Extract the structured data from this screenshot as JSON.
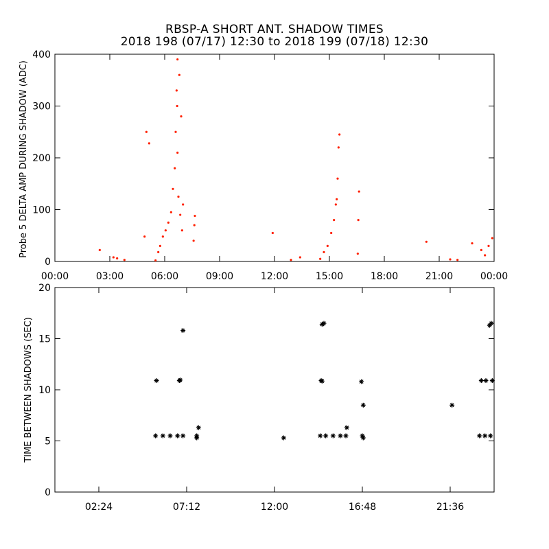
{
  "header": {
    "title": "RBSP-A SHORT ANT. SHADOW TIMES",
    "subtitle": "2018 198 (07/17) 12:30 to 2018 199 (07/18) 12:30"
  },
  "chart_data": [
    {
      "type": "scatter",
      "ylabel": "Probe 5 DELTA AMP DURING SHADOW (ADC)",
      "xlim": [
        0,
        24
      ],
      "ylim": [
        0,
        400
      ],
      "x_ticks": [
        0,
        3,
        6,
        9,
        12,
        15,
        18,
        21,
        24
      ],
      "x_tick_labels": [
        "00:00",
        "03:00",
        "06:00",
        "09:00",
        "12:00",
        "15:00",
        "18:00",
        "21:00",
        "00:00"
      ],
      "y_ticks": [
        0,
        100,
        200,
        300,
        400
      ],
      "y_tick_labels": [
        "0",
        "100",
        "200",
        "300",
        "400"
      ],
      "marker_color": "#ff2000",
      "series": [
        {
          "x": [
            2.45,
            3.2,
            3.4,
            3.8,
            4.9,
            5.0,
            5.15,
            5.5,
            5.65,
            5.75,
            5.9,
            6.05,
            6.2,
            6.35,
            6.45,
            6.55,
            6.6,
            6.65,
            6.7,
            6.8,
            6.9,
            7.0,
            6.68,
            6.7,
            6.75,
            6.85,
            6.95,
            7.58,
            7.62,
            7.65,
            11.9,
            12.9,
            13.4,
            14.5,
            14.7,
            14.9,
            15.1,
            15.25,
            15.35,
            15.45,
            15.5,
            15.55,
            15.4,
            16.55,
            16.58,
            16.62,
            20.3,
            21.6,
            22.0,
            22.8,
            23.3,
            23.5,
            23.7,
            23.9
          ],
          "y": [
            22,
            8,
            6,
            3,
            48,
            250,
            228,
            2,
            18,
            30,
            48,
            60,
            75,
            95,
            140,
            180,
            250,
            330,
            390,
            360,
            280,
            110,
            300,
            210,
            125,
            90,
            60,
            40,
            70,
            88,
            55,
            3,
            8,
            5,
            18,
            30,
            55,
            80,
            110,
            160,
            220,
            245,
            120,
            15,
            80,
            135,
            38,
            4,
            3,
            35,
            22,
            12,
            30,
            45
          ]
        }
      ]
    },
    {
      "type": "scatter",
      "ylabel": "TIME BETWEEN SHADOWS (SEC)",
      "xlim": [
        0,
        24
      ],
      "ylim": [
        0,
        20
      ],
      "x_ticks": [
        2.4,
        7.2,
        12,
        16.8,
        21.6
      ],
      "x_tick_labels": [
        "02:24",
        "07:12",
        "12:00",
        "16:48",
        "21:36"
      ],
      "y_ticks": [
        0,
        5,
        10,
        15,
        20
      ],
      "y_tick_labels": [
        "0",
        "5",
        "10",
        "15",
        "20"
      ],
      "marker_color": "#000000",
      "series": [
        {
          "x": [
            5.5,
            5.9,
            6.3,
            6.7,
            7.0,
            5.55,
            6.8,
            6.85,
            7.0,
            7.75,
            7.75,
            7.85,
            12.5,
            14.5,
            14.8,
            15.2,
            15.6,
            15.9,
            14.55,
            14.6,
            14.6,
            14.7,
            15.95,
            16.8,
            16.85,
            16.75,
            16.85,
            21.7,
            23.2,
            23.5,
            23.8,
            23.3,
            23.55,
            23.9,
            23.75,
            23.85
          ],
          "y": [
            5.5,
            5.5,
            5.5,
            5.5,
            5.5,
            10.9,
            10.9,
            10.95,
            15.8,
            5.5,
            5.3,
            6.3,
            5.3,
            5.5,
            5.5,
            5.5,
            5.5,
            5.5,
            10.9,
            10.85,
            16.4,
            16.5,
            6.3,
            5.5,
            5.3,
            10.8,
            8.5,
            8.5,
            5.5,
            5.5,
            5.5,
            10.9,
            10.9,
            10.9,
            16.3,
            16.5
          ]
        }
      ]
    }
  ]
}
